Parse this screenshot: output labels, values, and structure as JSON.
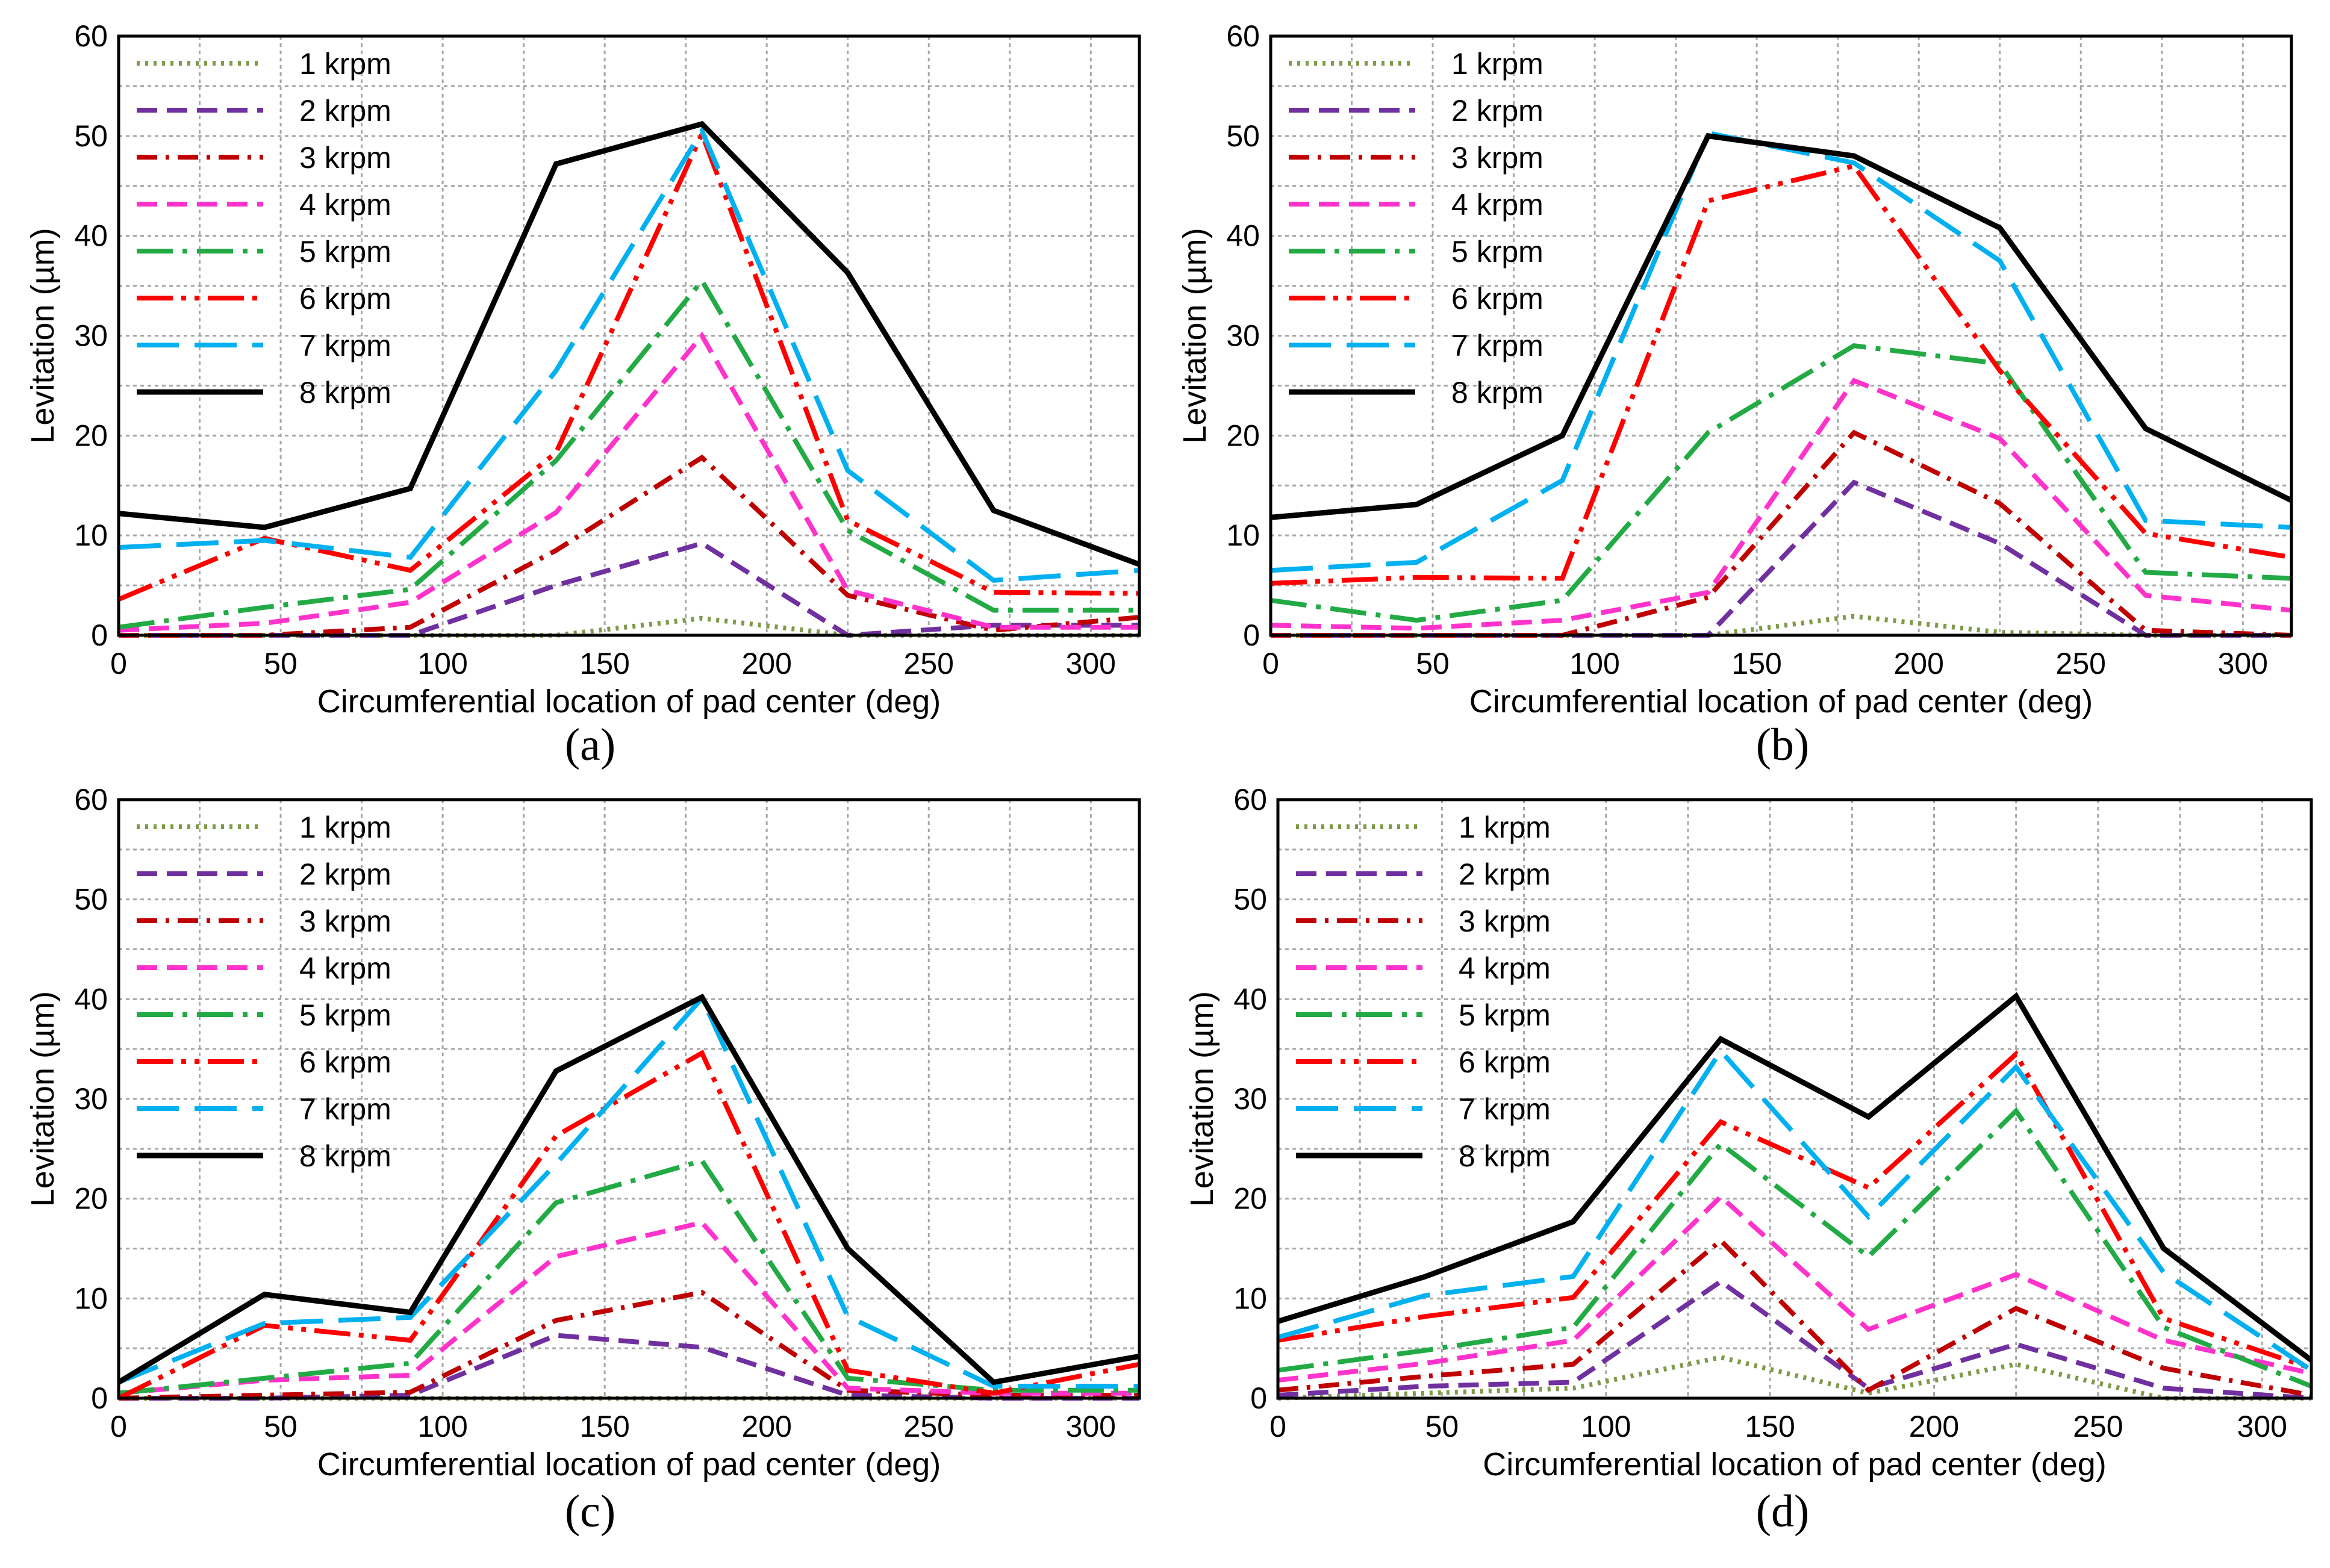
{
  "figure": {
    "panel_labels": [
      "(a)",
      "(b)",
      "(c)",
      "(d)"
    ],
    "series_styles": [
      {
        "name": "1 krpm",
        "color": "#7f9a48",
        "dash": "dot"
      },
      {
        "name": "2 krpm",
        "color": "#7030a0",
        "dash": "dash"
      },
      {
        "name": "3 krpm",
        "color": "#c00000",
        "dash": "dashdot"
      },
      {
        "name": "4 krpm",
        "color": "#ff33cc",
        "dash": "dash"
      },
      {
        "name": "5 krpm",
        "color": "#22aa44",
        "dash": "longdashdot"
      },
      {
        "name": "6 krpm",
        "color": "#ff0000",
        "dash": "longdashdotdot"
      },
      {
        "name": "7 krpm",
        "color": "#00b0f0",
        "dash": "longdash"
      },
      {
        "name": "8 krpm",
        "color": "#000000",
        "dash": "solid"
      }
    ]
  },
  "chart_data": [
    {
      "type": "line",
      "panel": "(a)",
      "xlabel": "Circumferential location of pad center (deg)",
      "ylabel": "Levitation (µm)",
      "xlim": [
        0,
        315
      ],
      "ylim": [
        0,
        60
      ],
      "xticks": [
        0,
        50,
        100,
        150,
        200,
        250,
        300
      ],
      "yticks": [
        0,
        10,
        20,
        30,
        40,
        50,
        60
      ],
      "grid": true,
      "legend": "top-left",
      "x": [
        0,
        45,
        90,
        135,
        180,
        225,
        270,
        315
      ],
      "series": [
        {
          "name": "1 krpm",
          "values": [
            0,
            0,
            0,
            0,
            1.7,
            0,
            0,
            0
          ]
        },
        {
          "name": "2 krpm",
          "values": [
            0,
            0,
            0,
            5,
            9.2,
            0,
            1,
            1
          ]
        },
        {
          "name": "3 krpm",
          "values": [
            0,
            0,
            0.8,
            8.5,
            17.8,
            4,
            0.5,
            1.8
          ]
        },
        {
          "name": "4 krpm",
          "values": [
            0.5,
            1.2,
            3.3,
            12.3,
            30,
            4.5,
            0.8,
            0.8
          ]
        },
        {
          "name": "5 krpm",
          "values": [
            0.8,
            2.8,
            4.6,
            17.5,
            35.5,
            10.5,
            2.5,
            2.5
          ]
        },
        {
          "name": "6 krpm",
          "values": [
            3.6,
            9.7,
            6.5,
            18.3,
            50.2,
            11.5,
            4.3,
            4.2
          ]
        },
        {
          "name": "7 krpm",
          "values": [
            8.8,
            9.5,
            7.8,
            26.5,
            50.5,
            16.5,
            5.5,
            6.5
          ]
        },
        {
          "name": "8 krpm",
          "values": [
            12.2,
            10.8,
            14.7,
            47.2,
            51.2,
            36.3,
            12.5,
            7.1
          ]
        }
      ]
    },
    {
      "type": "line",
      "panel": "(b)",
      "xlabel": "Circumferential location of pad center (deg)",
      "ylabel": "Levitation (µm)",
      "xlim": [
        0,
        315
      ],
      "ylim": [
        0,
        60
      ],
      "xticks": [
        0,
        50,
        100,
        150,
        200,
        250,
        300
      ],
      "yticks": [
        0,
        10,
        20,
        30,
        40,
        50,
        60
      ],
      "grid": true,
      "legend": "top-left",
      "x": [
        0,
        45,
        90,
        135,
        180,
        225,
        270,
        315
      ],
      "series": [
        {
          "name": "1 krpm",
          "values": [
            0,
            0,
            0,
            0,
            1.9,
            0.3,
            0,
            0
          ]
        },
        {
          "name": "2 krpm",
          "values": [
            0,
            0,
            0,
            0,
            15.3,
            9.2,
            0,
            0
          ]
        },
        {
          "name": "3 krpm",
          "values": [
            0,
            0,
            0,
            3.8,
            20.3,
            13.2,
            0.5,
            0
          ]
        },
        {
          "name": "4 krpm",
          "values": [
            1,
            0.7,
            1.5,
            4.3,
            25.5,
            19.7,
            4,
            2.5
          ]
        },
        {
          "name": "5 krpm",
          "values": [
            3.5,
            1.5,
            3.5,
            20.3,
            29,
            27.2,
            6.3,
            5.7
          ]
        },
        {
          "name": "6 krpm",
          "values": [
            5.2,
            5.8,
            5.7,
            43.5,
            47,
            26.5,
            10.2,
            7.8
          ]
        },
        {
          "name": "7 krpm",
          "values": [
            6.5,
            7.3,
            15.5,
            50.3,
            47.3,
            37.5,
            11.5,
            10.8
          ]
        },
        {
          "name": "8 krpm",
          "values": [
            11.8,
            13.1,
            20,
            50,
            48,
            40.8,
            20.7,
            13.5
          ]
        }
      ]
    },
    {
      "type": "line",
      "panel": "(c)",
      "xlabel": "Circumferential location of pad center (deg)",
      "ylabel": "Levitation (µm)",
      "xlim": [
        0,
        315
      ],
      "ylim": [
        0,
        60
      ],
      "xticks": [
        0,
        50,
        100,
        150,
        200,
        250,
        300
      ],
      "yticks": [
        0,
        10,
        20,
        30,
        40,
        50,
        60
      ],
      "grid": true,
      "legend": "top-left",
      "x": [
        0,
        45,
        90,
        135,
        180,
        225,
        270,
        315
      ],
      "series": [
        {
          "name": "1 krpm",
          "values": [
            0,
            0,
            0,
            0,
            0,
            0,
            0,
            0
          ]
        },
        {
          "name": "2 krpm",
          "values": [
            0,
            0,
            0.3,
            6.3,
            5.1,
            0.3,
            0,
            0
          ]
        },
        {
          "name": "3 krpm",
          "values": [
            0,
            0.3,
            0.6,
            7.8,
            10.6,
            0.8,
            0.3,
            0.3
          ]
        },
        {
          "name": "4 krpm",
          "values": [
            0.5,
            1.8,
            2.3,
            14.2,
            17.6,
            1,
            0.5,
            0.5
          ]
        },
        {
          "name": "5 krpm",
          "values": [
            0.5,
            2,
            3.5,
            19.6,
            23.8,
            2,
            0.8,
            0.8
          ]
        },
        {
          "name": "6 krpm",
          "values": [
            0,
            7.3,
            5.8,
            26.3,
            34.6,
            2.8,
            0.5,
            3.4
          ]
        },
        {
          "name": "7 krpm",
          "values": [
            1.6,
            7.5,
            8.1,
            23.5,
            40.1,
            8.2,
            1.2,
            1.2
          ]
        },
        {
          "name": "8 krpm",
          "values": [
            1.6,
            10.4,
            8.6,
            32.8,
            40.2,
            15,
            1.6,
            4.2
          ]
        }
      ]
    },
    {
      "type": "line",
      "panel": "(d)",
      "xlabel": "Circumferential location of pad center (deg)",
      "ylabel": "Levitation (µm)",
      "xlim": [
        0,
        315
      ],
      "ylim": [
        0,
        60
      ],
      "xticks": [
        0,
        50,
        100,
        150,
        200,
        250,
        300
      ],
      "yticks": [
        0,
        10,
        20,
        30,
        40,
        50,
        60
      ],
      "grid": true,
      "legend": "top-left",
      "x": [
        0,
        45,
        90,
        135,
        180,
        225,
        270,
        315
      ],
      "series": [
        {
          "name": "1 krpm",
          "values": [
            0,
            0.5,
            1,
            4.1,
            0.5,
            3.4,
            0,
            0
          ]
        },
        {
          "name": "2 krpm",
          "values": [
            0.3,
            1.2,
            1.6,
            11.7,
            1,
            5.4,
            1,
            0
          ]
        },
        {
          "name": "3 krpm",
          "values": [
            0.8,
            2.2,
            3.4,
            15.8,
            0.8,
            9,
            3,
            0.3
          ]
        },
        {
          "name": "4 krpm",
          "values": [
            1.8,
            3.5,
            5.8,
            20.2,
            6.9,
            12.4,
            5.8,
            2.5
          ]
        },
        {
          "name": "5 krpm",
          "values": [
            2.8,
            4.8,
            7.1,
            25.5,
            14.2,
            28.8,
            7.1,
            1.2
          ]
        },
        {
          "name": "6 krpm",
          "values": [
            5.8,
            8.2,
            10.1,
            27.7,
            21.1,
            34.5,
            8,
            3
          ]
        },
        {
          "name": "7 krpm",
          "values": [
            6.1,
            10.3,
            12.2,
            34.8,
            18.2,
            33.2,
            12.6,
            2.8
          ]
        },
        {
          "name": "8 krpm",
          "values": [
            7.7,
            12.2,
            17.7,
            36,
            28.2,
            40.3,
            15,
            3.8
          ]
        }
      ]
    }
  ]
}
